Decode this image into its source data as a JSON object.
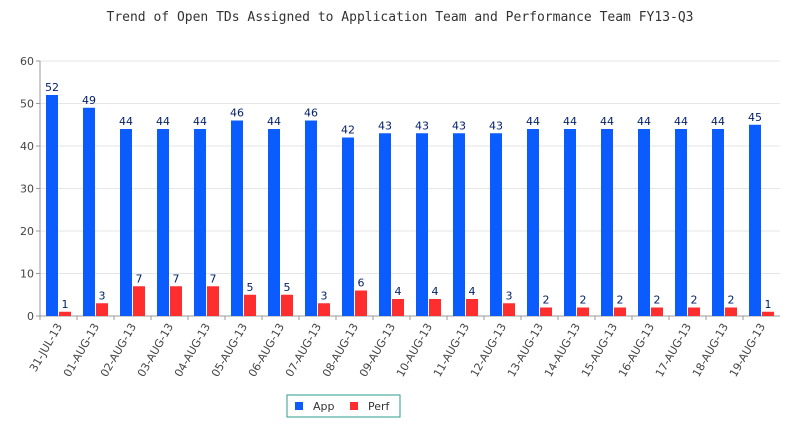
{
  "chart_data": {
    "type": "bar",
    "title": "Trend of Open TDs Assigned to Application Team and Performance Team FY13-Q3",
    "xlabel": "",
    "ylabel": "",
    "ylim": [
      0,
      60
    ],
    "yticks": [
      0,
      10,
      20,
      30,
      40,
      50,
      60
    ],
    "grid": true,
    "legend_position": "bottom-center",
    "categories": [
      "31-JUL-13",
      "01-AUG-13",
      "02-AUG-13",
      "03-AUG-13",
      "04-AUG-13",
      "05-AUG-13",
      "06-AUG-13",
      "07-AUG-13",
      "08-AUG-13",
      "09-AUG-13",
      "10-AUG-13",
      "11-AUG-13",
      "12-AUG-13",
      "13-AUG-13",
      "14-AUG-13",
      "15-AUG-13",
      "16-AUG-13",
      "17-AUG-13",
      "18-AUG-13",
      "19-AUG-13"
    ],
    "series": [
      {
        "name": "App",
        "color": "#0a5cff",
        "values": [
          52,
          49,
          44,
          44,
          44,
          46,
          44,
          46,
          42,
          43,
          43,
          43,
          43,
          44,
          44,
          44,
          44,
          44,
          44,
          45
        ]
      },
      {
        "name": "Perf",
        "color": "#ff2e2e",
        "values": [
          1,
          3,
          7,
          7,
          7,
          5,
          5,
          3,
          6,
          4,
          4,
          4,
          3,
          2,
          2,
          2,
          2,
          2,
          2,
          1
        ]
      }
    ]
  }
}
